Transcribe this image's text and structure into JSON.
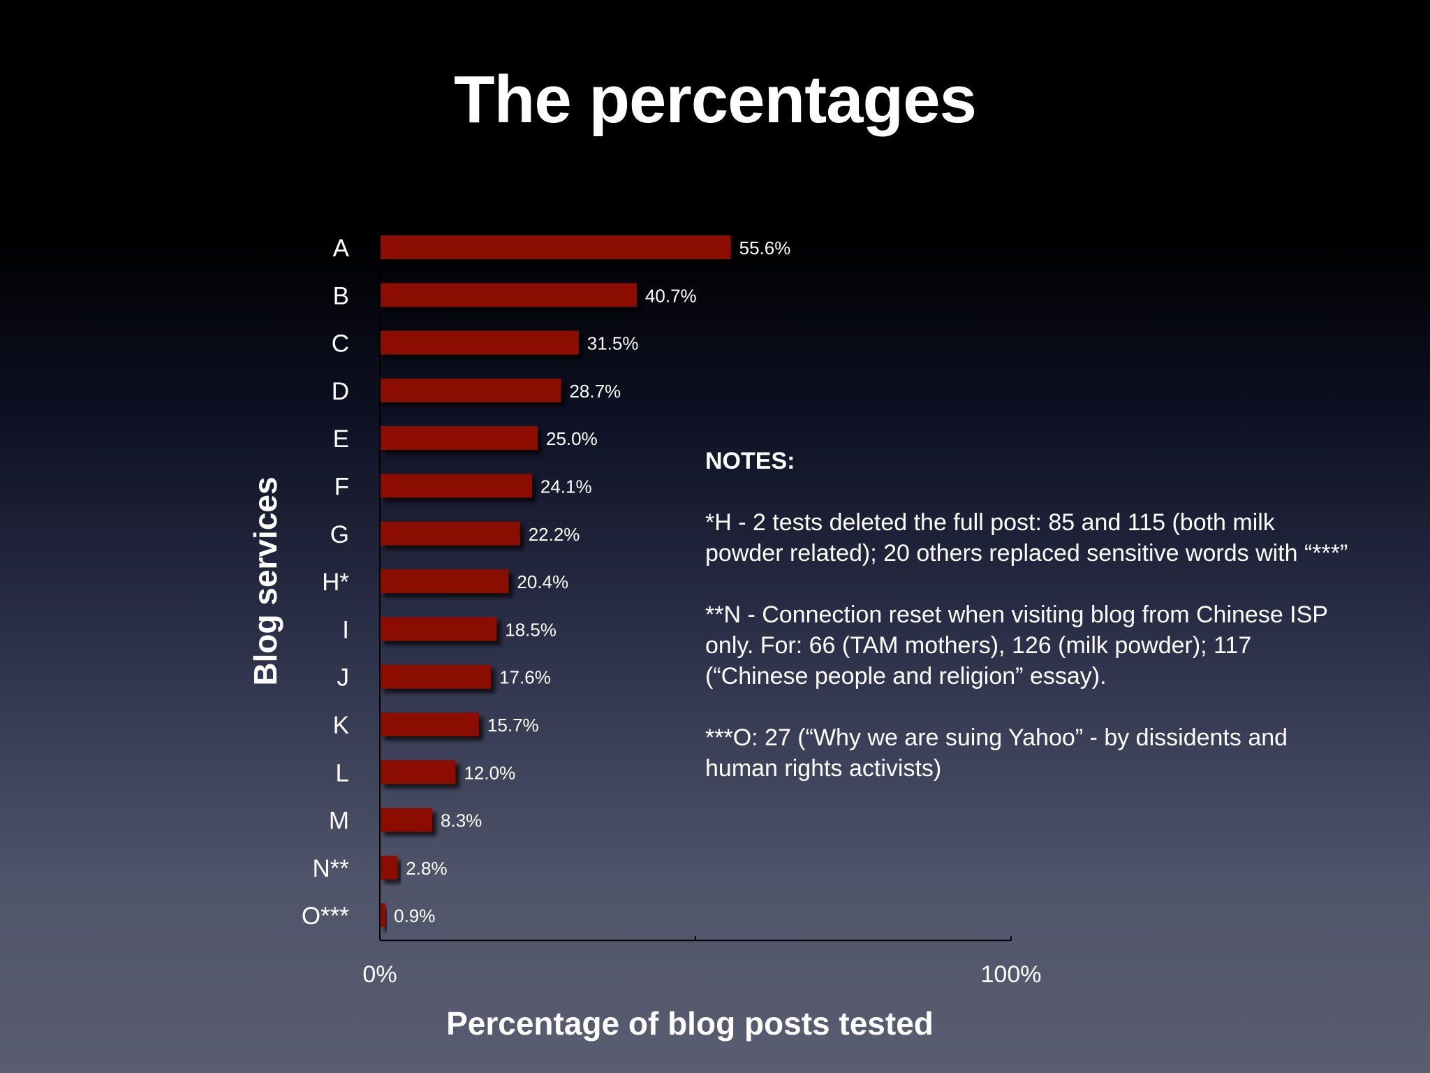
{
  "slide": {
    "title": "The percentages"
  },
  "notes": {
    "heading": "NOTES:",
    "items": [
      "*H - 2 tests deleted the full post: 85 and 115 (both milk powder related); 20 others replaced sensitive words with “***”",
      "**N - Connection reset when visiting blog from Chinese ISP only. For: 66 (TAM mothers), 126 (milk powder); 117 (“Chinese people and religion” essay).",
      "***O: 27 (“Why we are suing Yahoo” - by dissidents and human rights activists)"
    ]
  },
  "chart_data": {
    "type": "bar",
    "orientation": "horizontal",
    "categories": [
      "A",
      "B",
      "C",
      "D",
      "E",
      "F",
      "G",
      "H*",
      "I",
      "J",
      "K",
      "L",
      "M",
      "N**",
      "O***"
    ],
    "values": [
      55.6,
      40.7,
      31.5,
      28.7,
      25.0,
      24.1,
      22.2,
      20.4,
      18.5,
      17.6,
      15.7,
      12.0,
      8.3,
      2.8,
      0.9
    ],
    "value_labels": [
      "55.6%",
      "40.7%",
      "31.5%",
      "28.7%",
      "25.0%",
      "24.1%",
      "22.2%",
      "20.4%",
      "18.5%",
      "17.6%",
      "15.7%",
      "12.0%",
      "8.3%",
      "2.8%",
      "0.9%"
    ],
    "xlabel": "Percentage of blog posts tested",
    "ylabel": "Blog services",
    "xlim": [
      0,
      100
    ],
    "x_ticks": [
      "0%",
      "100%"
    ],
    "grid": false,
    "bar_color": "#8b0f05"
  }
}
